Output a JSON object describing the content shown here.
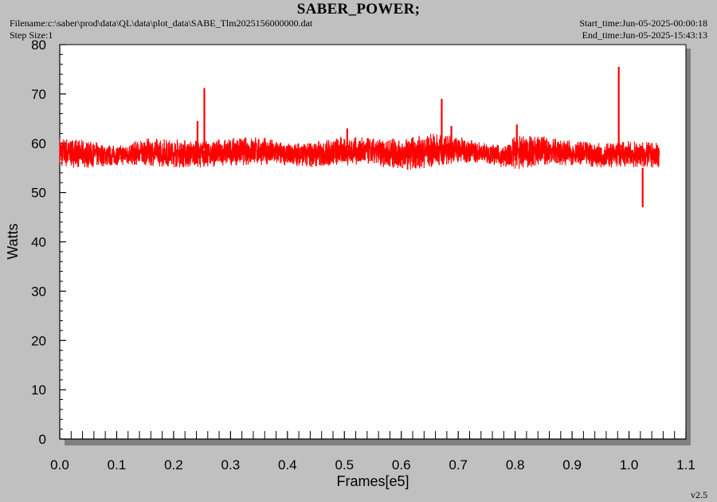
{
  "header": {
    "title": "SABER_POWER;",
    "filename": "Filename:c:\\saber\\prod\\data\\QL\\data\\plot_data\\SABE_Tlm2025156000000.dat",
    "step_size": "Step Size:1",
    "start_time": "Start_time:Jun-05-2025-00:00:18",
    "end_time": "End_time:Jun-05-2025-15:43:13"
  },
  "footer": {
    "version": "v2.5"
  },
  "colors": {
    "background": "#c0c0c0",
    "plot_area": "#ffffff",
    "series": "#ff0000",
    "frame_shadow": "#808080"
  },
  "chart_data": {
    "type": "line",
    "title": "SABER_POWER;",
    "xlabel": "Frames[e5]",
    "ylabel": "Watts",
    "xlim": [
      0.0,
      1.1
    ],
    "ylim": [
      0,
      80
    ],
    "x_ticks": [
      "0.0",
      "0.1",
      "0.2",
      "0.3",
      "0.4",
      "0.5",
      "0.6",
      "0.7",
      "0.8",
      "0.9",
      "1.0",
      "1.1"
    ],
    "y_ticks": [
      "0",
      "10",
      "20",
      "30",
      "40",
      "50",
      "60",
      "70",
      "80"
    ],
    "grid": false,
    "legend": "none",
    "series": [
      {
        "color": "#ff0000",
        "envelope": [
          {
            "x": 0.0,
            "min": 55.0,
            "max": 61.5
          },
          {
            "x": 0.05,
            "min": 55.0,
            "max": 60.5
          },
          {
            "x": 0.1,
            "min": 55.5,
            "max": 59.5
          },
          {
            "x": 0.15,
            "min": 55.5,
            "max": 61.0
          },
          {
            "x": 0.2,
            "min": 55.0,
            "max": 61.0
          },
          {
            "x": 0.25,
            "min": 55.0,
            "max": 60.5
          },
          {
            "x": 0.3,
            "min": 55.5,
            "max": 61.0
          },
          {
            "x": 0.35,
            "min": 55.5,
            "max": 61.5
          },
          {
            "x": 0.4,
            "min": 55.5,
            "max": 60.0
          },
          {
            "x": 0.45,
            "min": 55.0,
            "max": 60.5
          },
          {
            "x": 0.5,
            "min": 55.5,
            "max": 61.5
          },
          {
            "x": 0.55,
            "min": 55.5,
            "max": 61.0
          },
          {
            "x": 0.6,
            "min": 54.5,
            "max": 61.0
          },
          {
            "x": 0.65,
            "min": 55.0,
            "max": 62.0
          },
          {
            "x": 0.7,
            "min": 56.0,
            "max": 61.5
          },
          {
            "x": 0.75,
            "min": 56.0,
            "max": 60.0
          },
          {
            "x": 0.78,
            "min": 55.0,
            "max": 59.5
          },
          {
            "x": 0.8,
            "min": 54.5,
            "max": 61.5
          },
          {
            "x": 0.85,
            "min": 55.5,
            "max": 61.5
          },
          {
            "x": 0.9,
            "min": 55.5,
            "max": 60.5
          },
          {
            "x": 0.95,
            "min": 55.0,
            "max": 60.0
          },
          {
            "x": 1.0,
            "min": 55.0,
            "max": 60.5
          },
          {
            "x": 1.053,
            "min": 55.0,
            "max": 60.0
          }
        ],
        "spikes": [
          {
            "x": 0.242,
            "y": 64.5
          },
          {
            "x": 0.254,
            "y": 71.2
          },
          {
            "x": 0.505,
            "y": 63.0
          },
          {
            "x": 0.671,
            "y": 69.0
          },
          {
            "x": 0.688,
            "y": 63.5
          },
          {
            "x": 0.803,
            "y": 63.8
          },
          {
            "x": 0.982,
            "y": 75.5
          },
          {
            "x": 1.024,
            "y": 47.0
          }
        ]
      }
    ]
  }
}
